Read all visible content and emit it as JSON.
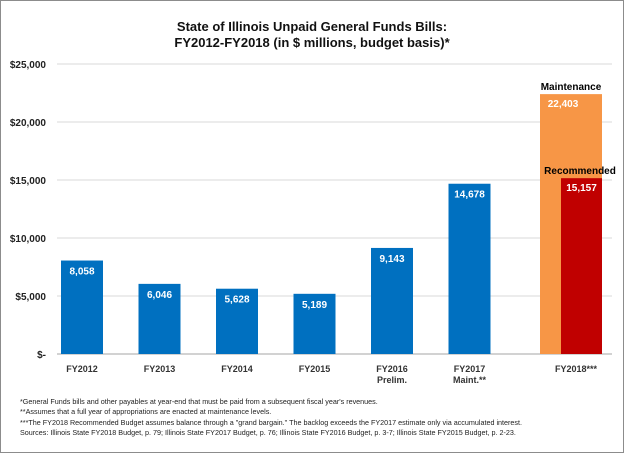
{
  "chart_data": {
    "type": "bar",
    "title_line1": "State of Illinois Unpaid General Funds Bills:",
    "title_line2": "FY2012-FY2018 (in $ millions, budget basis)*",
    "ylim": [
      0,
      25000
    ],
    "y_ticks": [
      "$-",
      "$5,000",
      "$10,000",
      "$15,000",
      "$20,000",
      "$25,000"
    ],
    "y_tick_values": [
      0,
      5000,
      10000,
      15000,
      20000,
      25000
    ],
    "grid": true,
    "categories": [
      {
        "label": "FY2012",
        "label2": "",
        "value": 8058,
        "value_label": "8,058"
      },
      {
        "label": "FY2013",
        "label2": "",
        "value": 6046,
        "value_label": "6,046"
      },
      {
        "label": "FY2014",
        "label2": "",
        "value": 5628,
        "value_label": "5,628"
      },
      {
        "label": "FY2015",
        "label2": "",
        "value": 5189,
        "value_label": "5,189"
      },
      {
        "label": "FY2016",
        "label2": "Prelim.",
        "value": 9143,
        "value_label": "9,143"
      },
      {
        "label": "FY2017",
        "label2": "Maint.**",
        "value": 14678,
        "value_label": "14,678"
      }
    ],
    "fy2018": {
      "label": "FY2018***",
      "maintenance": {
        "name": "Maintenance",
        "value": 22403,
        "value_label": "22,403"
      },
      "recommended": {
        "name": "Recommended",
        "value": 15157,
        "value_label": "15,157"
      }
    },
    "colors": {
      "main": "#0070c0",
      "maintenance": "#f79646",
      "recommended": "#c00000",
      "grid": "#d9d9d9"
    }
  },
  "notes": [
    "*General Funds bills and other payables at year-end that must be paid from a subsequent fiscal year's revenues.",
    "**Assumes that a full year of appropriations are enacted at maintenance levels.",
    "***The FY2018 Recommended Budget assumes balance through a \"grand bargain.\" The backlog exceeds the FY2017 estimate only via accumulated interest.",
    "Sources: Illinois State FY2018 Budget, p. 79; Illinois State FY2017 Budget, p. 76; Illinois State FY2016 Budget, p. 3-7; Illinois State FY2015 Budget, p. 2-23."
  ]
}
